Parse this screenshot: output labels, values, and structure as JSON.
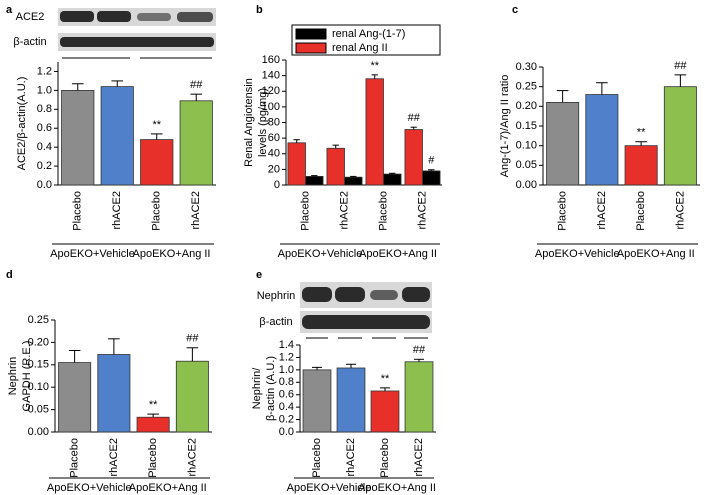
{
  "chart_data": [
    {
      "type": "bar",
      "panel": "a",
      "ylabel": [
        "ACE2/β-actin(A.U.)"
      ],
      "blot_labels": [
        "ACE2",
        "β-actin"
      ],
      "categories": [
        "Placebo",
        "rhACE2",
        "Placebo",
        "rhACE2"
      ],
      "groups": [
        "ApoEKO+Vehicle",
        "ApoEKO+Ang II"
      ],
      "values": [
        1.0,
        1.04,
        0.48,
        0.89
      ],
      "errors": [
        0.07,
        0.06,
        0.06,
        0.07
      ],
      "annotations": [
        null,
        null,
        "**",
        "##"
      ],
      "colors": [
        "#8c8c8c",
        "#4f80c9",
        "#e8302a",
        "#8dbf4f"
      ],
      "ylim": [
        0,
        1.3
      ],
      "yticks": [
        {
          "value": 0,
          "label": "0.0"
        },
        {
          "value": 0.2,
          "label": "0.2"
        },
        {
          "value": 0.4,
          "label": "0.4"
        },
        {
          "value": 0.6,
          "label": "0.6"
        },
        {
          "value": 0.8,
          "label": "0.8"
        },
        {
          "value": 1.0,
          "label": "1.0"
        },
        {
          "value": 1.2,
          "label": "1.2"
        }
      ]
    },
    {
      "type": "grouped_bar",
      "panel": "b",
      "ylabel": [
        "Renal Angiotensin",
        "levels (pg/mg)"
      ],
      "categories": [
        "Placebo",
        "rhACE2",
        "Placebo",
        "rhACE2"
      ],
      "groups": [
        "ApoEKO+Vehicle",
        "ApoEKO+Ang II"
      ],
      "series": [
        {
          "name": "renal Ang-(1-7)",
          "color": "#000000",
          "values": [
            11,
            10,
            14,
            18
          ],
          "errors": [
            1,
            1,
            1,
            1.5
          ],
          "annotations": [
            null,
            null,
            null,
            "#"
          ]
        },
        {
          "name": "renal Ang II",
          "color": "#e8302a",
          "values": [
            54,
            47,
            136,
            71
          ],
          "errors": [
            4,
            4,
            5,
            3
          ],
          "annotations": [
            null,
            null,
            "**",
            "##"
          ]
        }
      ],
      "ylim": [
        0,
        160
      ],
      "yticks": [
        0,
        20,
        40,
        60,
        80,
        100,
        120,
        140,
        160
      ]
    },
    {
      "type": "bar",
      "panel": "c",
      "ylabel": [
        "Ang-(1-7)/Ang II ratio"
      ],
      "categories": [
        "Placebo",
        "rhACE2",
        "Placebo",
        "rhACE2"
      ],
      "groups": [
        "ApoEKO+Vehicle",
        "ApoEKO+Ang II"
      ],
      "values": [
        0.21,
        0.23,
        0.1,
        0.25
      ],
      "errors": [
        0.03,
        0.03,
        0.01,
        0.03
      ],
      "annotations": [
        null,
        null,
        "**",
        "##"
      ],
      "colors": [
        "#8c8c8c",
        "#4f80c9",
        "#e8302a",
        "#8dbf4f"
      ],
      "ylim": [
        0,
        0.3
      ],
      "yticks": [
        {
          "value": 0,
          "label": "0.00"
        },
        {
          "value": 0.05,
          "label": "0.05"
        },
        {
          "value": 0.1,
          "label": "0.10"
        },
        {
          "value": 0.15,
          "label": "0.15"
        },
        {
          "value": 0.2,
          "label": "0.20"
        },
        {
          "value": 0.25,
          "label": "0.25"
        },
        {
          "value": 0.3,
          "label": "0.30"
        }
      ]
    },
    {
      "type": "bar",
      "panel": "d",
      "ylabel": [
        "Nephrin",
        "GAPDH (R.E.)"
      ],
      "categories": [
        "Placebo",
        "rhACE2",
        "Placebo",
        "rhACE2"
      ],
      "groups": [
        "ApoEKO+Vehicle",
        "ApoEKO+Ang II"
      ],
      "values": [
        0.155,
        0.173,
        0.033,
        0.158
      ],
      "errors": [
        0.027,
        0.035,
        0.007,
        0.03
      ],
      "annotations": [
        null,
        null,
        "**",
        "##"
      ],
      "colors": [
        "#8c8c8c",
        "#4f80c9",
        "#e8302a",
        "#8dbf4f"
      ],
      "ylim": [
        0,
        0.25
      ],
      "yticks": [
        {
          "value": 0,
          "label": "0.00"
        },
        {
          "value": 0.05,
          "label": "0.05"
        },
        {
          "value": 0.1,
          "label": "0.10"
        },
        {
          "value": 0.15,
          "label": "0.15"
        },
        {
          "value": 0.2,
          "label": "0.20"
        },
        {
          "value": 0.25,
          "label": "0.25"
        }
      ]
    },
    {
      "type": "bar",
      "panel": "e",
      "ylabel": [
        "Nephrin/",
        "β-actin (A.U.)"
      ],
      "blot_labels": [
        "Nephrin",
        "β-actin"
      ],
      "categories": [
        "Placebo",
        "rhACE2",
        "Placebo",
        "rhACE2"
      ],
      "groups": [
        "ApoEKO+Vehicle",
        "ApoEKO+Ang II"
      ],
      "values": [
        1.0,
        1.03,
        0.66,
        1.13
      ],
      "errors": [
        0.04,
        0.06,
        0.05,
        0.04
      ],
      "annotations": [
        null,
        null,
        "**",
        "##"
      ],
      "colors": [
        "#8c8c8c",
        "#4f80c9",
        "#e8302a",
        "#8dbf4f"
      ],
      "ylim": [
        0,
        1.4
      ],
      "yticks": [
        {
          "value": 0,
          "label": "0.0"
        },
        {
          "value": 0.2,
          "label": "0.2"
        },
        {
          "value": 0.4,
          "label": "0.4"
        },
        {
          "value": 0.6,
          "label": "0.6"
        },
        {
          "value": 0.8,
          "label": "0.8"
        },
        {
          "value": 1.0,
          "label": "1.0"
        },
        {
          "value": 1.2,
          "label": "1.2"
        },
        {
          "value": 1.4,
          "label": "1.4"
        }
      ]
    }
  ]
}
